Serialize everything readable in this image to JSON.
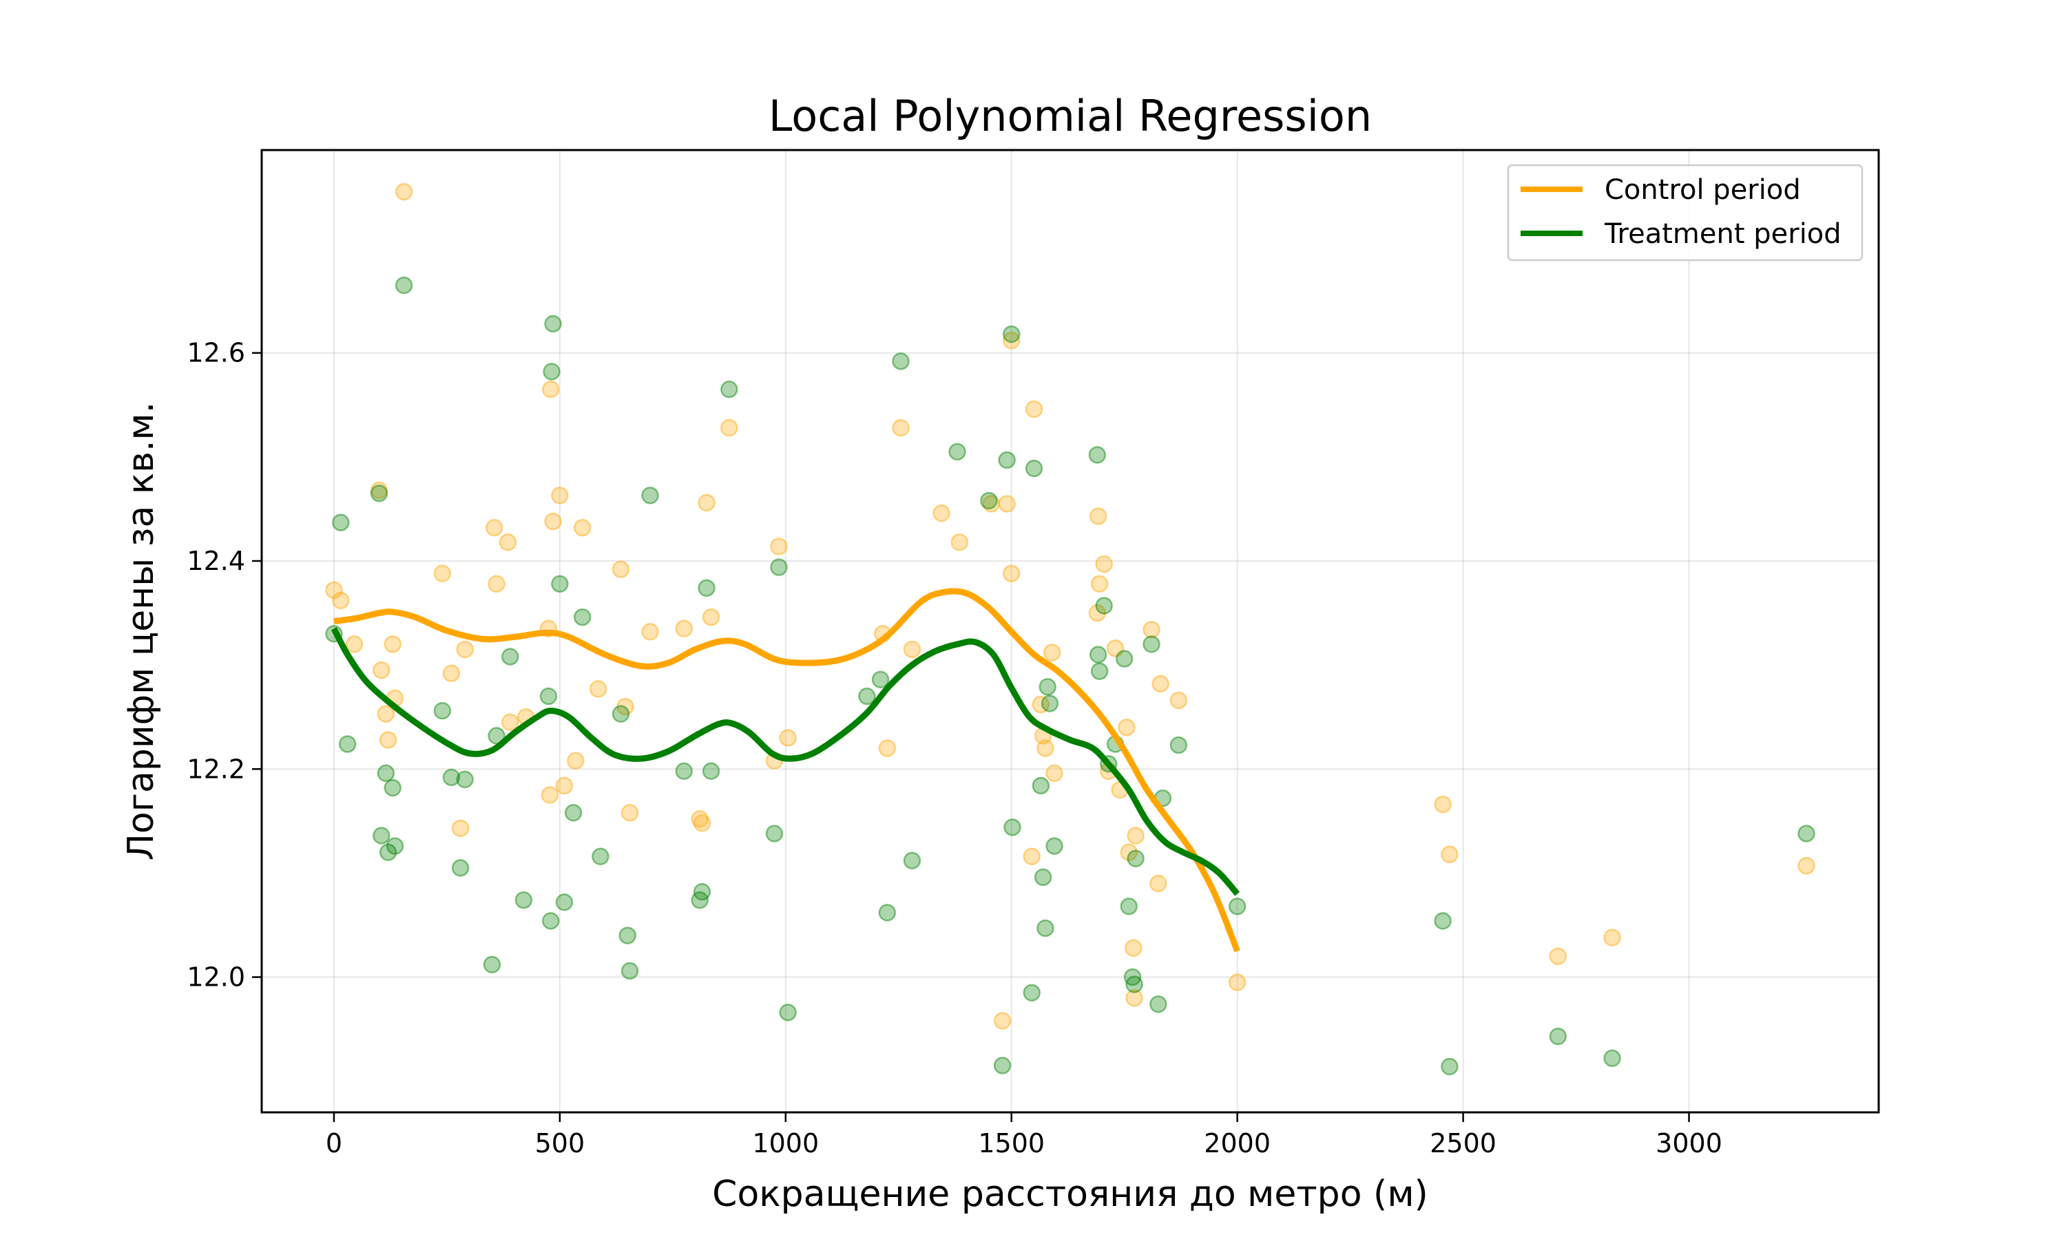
{
  "chart_data": {
    "type": "scatter",
    "title": "Local Polynomial Regression",
    "xlabel": "Сокращение расстояния до метро (м)",
    "ylabel": "Логарифм цены за кв.м.",
    "xlim": [
      -160,
      3420
    ],
    "ylim": [
      11.87,
      12.795
    ],
    "xticks": [
      0,
      500,
      1000,
      1500,
      2000,
      2500,
      3000
    ],
    "yticks": [
      12.0,
      12.2,
      12.4,
      12.6
    ],
    "xtick_labels": [
      "0",
      "500",
      "1000",
      "1500",
      "2000",
      "2500",
      "3000"
    ],
    "ytick_labels": [
      "12.0",
      "12.2",
      "12.4",
      "12.6"
    ],
    "grid": true,
    "legend_position": "top-right",
    "series": [
      {
        "name": "Control period",
        "color": "#FFA500",
        "points": [
          [
            0,
            12.372
          ],
          [
            15,
            12.362
          ],
          [
            45,
            12.32
          ],
          [
            100,
            12.468
          ],
          [
            105,
            12.295
          ],
          [
            115,
            12.253
          ],
          [
            120,
            12.228
          ],
          [
            130,
            12.32
          ],
          [
            135,
            12.268
          ],
          [
            155,
            12.755
          ],
          [
            240,
            12.388
          ],
          [
            260,
            12.292
          ],
          [
            280,
            12.143
          ],
          [
            290,
            12.315
          ],
          [
            355,
            12.432
          ],
          [
            360,
            12.378
          ],
          [
            385,
            12.418
          ],
          [
            390,
            12.245
          ],
          [
            425,
            12.25
          ],
          [
            475,
            12.335
          ],
          [
            478,
            12.175
          ],
          [
            480,
            12.565
          ],
          [
            485,
            12.438
          ],
          [
            500,
            12.463
          ],
          [
            510,
            12.184
          ],
          [
            535,
            12.208
          ],
          [
            550,
            12.432
          ],
          [
            585,
            12.277
          ],
          [
            635,
            12.392
          ],
          [
            645,
            12.26
          ],
          [
            655,
            12.158
          ],
          [
            700,
            12.332
          ],
          [
            775,
            12.335
          ],
          [
            810,
            12.152
          ],
          [
            815,
            12.148
          ],
          [
            825,
            12.456
          ],
          [
            835,
            12.346
          ],
          [
            875,
            12.528
          ],
          [
            975,
            12.208
          ],
          [
            985,
            12.414
          ],
          [
            1005,
            12.23
          ],
          [
            1215,
            12.33
          ],
          [
            1225,
            12.22
          ],
          [
            1255,
            12.528
          ],
          [
            1280,
            12.315
          ],
          [
            1345,
            12.446
          ],
          [
            1385,
            12.418
          ],
          [
            1455,
            12.455
          ],
          [
            1480,
            11.958
          ],
          [
            1490,
            12.455
          ],
          [
            1500,
            12.388
          ],
          [
            1500,
            12.612
          ],
          [
            1545,
            12.116
          ],
          [
            1550,
            12.546
          ],
          [
            1565,
            12.262
          ],
          [
            1570,
            12.232
          ],
          [
            1575,
            12.22
          ],
          [
            1590,
            12.312
          ],
          [
            1595,
            12.196
          ],
          [
            1690,
            12.35
          ],
          [
            1692,
            12.443
          ],
          [
            1695,
            12.378
          ],
          [
            1705,
            12.397
          ],
          [
            1715,
            12.198
          ],
          [
            1730,
            12.316
          ],
          [
            1740,
            12.18
          ],
          [
            1755,
            12.24
          ],
          [
            1760,
            12.12
          ],
          [
            1770,
            12.028
          ],
          [
            1772,
            11.98
          ],
          [
            1775,
            12.136
          ],
          [
            1810,
            12.334
          ],
          [
            1825,
            12.09
          ],
          [
            1830,
            12.282
          ],
          [
            1870,
            12.266
          ],
          [
            2000,
            11.995
          ],
          [
            2455,
            12.166
          ],
          [
            2470,
            12.118
          ],
          [
            2710,
            12.02
          ],
          [
            2830,
            12.038
          ],
          [
            3260,
            12.107
          ]
        ],
        "curve": [
          [
            0,
            12.342
          ],
          [
            50,
            12.345
          ],
          [
            100,
            12.35
          ],
          [
            130,
            12.351
          ],
          [
            180,
            12.346
          ],
          [
            250,
            12.333
          ],
          [
            330,
            12.325
          ],
          [
            400,
            12.327
          ],
          [
            470,
            12.331
          ],
          [
            520,
            12.327
          ],
          [
            600,
            12.31
          ],
          [
            680,
            12.299
          ],
          [
            740,
            12.302
          ],
          [
            800,
            12.315
          ],
          [
            860,
            12.323
          ],
          [
            910,
            12.32
          ],
          [
            980,
            12.305
          ],
          [
            1050,
            12.302
          ],
          [
            1120,
            12.305
          ],
          [
            1180,
            12.315
          ],
          [
            1230,
            12.33
          ],
          [
            1300,
            12.361
          ],
          [
            1350,
            12.37
          ],
          [
            1400,
            12.369
          ],
          [
            1450,
            12.355
          ],
          [
            1500,
            12.332
          ],
          [
            1550,
            12.31
          ],
          [
            1600,
            12.295
          ],
          [
            1650,
            12.275
          ],
          [
            1700,
            12.25
          ],
          [
            1750,
            12.218
          ],
          [
            1800,
            12.18
          ],
          [
            1850,
            12.15
          ],
          [
            1900,
            12.12
          ],
          [
            1950,
            12.08
          ],
          [
            2000,
            12.025
          ]
        ]
      },
      {
        "name": "Treatment period",
        "color": "#008000",
        "points": [
          [
            0,
            12.33
          ],
          [
            15,
            12.437
          ],
          [
            30,
            12.224
          ],
          [
            100,
            12.465
          ],
          [
            105,
            12.136
          ],
          [
            115,
            12.196
          ],
          [
            120,
            12.12
          ],
          [
            130,
            12.182
          ],
          [
            135,
            12.126
          ],
          [
            155,
            12.665
          ],
          [
            240,
            12.256
          ],
          [
            260,
            12.192
          ],
          [
            280,
            12.105
          ],
          [
            290,
            12.19
          ],
          [
            350,
            12.012
          ],
          [
            360,
            12.232
          ],
          [
            390,
            12.308
          ],
          [
            420,
            12.074
          ],
          [
            475,
            12.27
          ],
          [
            480,
            12.054
          ],
          [
            482,
            12.582
          ],
          [
            485,
            12.628
          ],
          [
            500,
            12.378
          ],
          [
            510,
            12.072
          ],
          [
            530,
            12.158
          ],
          [
            550,
            12.346
          ],
          [
            590,
            12.116
          ],
          [
            635,
            12.253
          ],
          [
            650,
            12.04
          ],
          [
            655,
            12.006
          ],
          [
            700,
            12.463
          ],
          [
            775,
            12.198
          ],
          [
            810,
            12.074
          ],
          [
            815,
            12.082
          ],
          [
            825,
            12.374
          ],
          [
            835,
            12.198
          ],
          [
            875,
            12.565
          ],
          [
            975,
            12.138
          ],
          [
            985,
            12.394
          ],
          [
            1005,
            11.966
          ],
          [
            1180,
            12.27
          ],
          [
            1210,
            12.286
          ],
          [
            1225,
            12.062
          ],
          [
            1255,
            12.592
          ],
          [
            1280,
            12.112
          ],
          [
            1380,
            12.505
          ],
          [
            1450,
            12.458
          ],
          [
            1480,
            11.915
          ],
          [
            1490,
            12.497
          ],
          [
            1500,
            12.618
          ],
          [
            1502,
            12.144
          ],
          [
            1545,
            11.985
          ],
          [
            1550,
            12.489
          ],
          [
            1565,
            12.184
          ],
          [
            1570,
            12.096
          ],
          [
            1575,
            12.047
          ],
          [
            1580,
            12.279
          ],
          [
            1585,
            12.263
          ],
          [
            1595,
            12.126
          ],
          [
            1690,
            12.502
          ],
          [
            1692,
            12.31
          ],
          [
            1695,
            12.294
          ],
          [
            1705,
            12.357
          ],
          [
            1715,
            12.205
          ],
          [
            1730,
            12.224
          ],
          [
            1750,
            12.306
          ],
          [
            1760,
            12.068
          ],
          [
            1768,
            12.0
          ],
          [
            1772,
            11.993
          ],
          [
            1775,
            12.114
          ],
          [
            1810,
            12.32
          ],
          [
            1825,
            11.974
          ],
          [
            1835,
            12.172
          ],
          [
            1870,
            12.223
          ],
          [
            2000,
            12.068
          ],
          [
            2455,
            12.054
          ],
          [
            2470,
            11.914
          ],
          [
            2710,
            11.943
          ],
          [
            2830,
            11.922
          ],
          [
            3260,
            12.138
          ]
        ],
        "curve": [
          [
            0,
            12.335
          ],
          [
            30,
            12.31
          ],
          [
            70,
            12.285
          ],
          [
            120,
            12.265
          ],
          [
            180,
            12.245
          ],
          [
            250,
            12.225
          ],
          [
            300,
            12.215
          ],
          [
            350,
            12.218
          ],
          [
            400,
            12.235
          ],
          [
            450,
            12.25
          ],
          [
            480,
            12.256
          ],
          [
            520,
            12.25
          ],
          [
            570,
            12.23
          ],
          [
            620,
            12.214
          ],
          [
            680,
            12.21
          ],
          [
            740,
            12.217
          ],
          [
            800,
            12.232
          ],
          [
            850,
            12.243
          ],
          [
            880,
            12.244
          ],
          [
            920,
            12.235
          ],
          [
            970,
            12.215
          ],
          [
            1010,
            12.21
          ],
          [
            1060,
            12.215
          ],
          [
            1120,
            12.232
          ],
          [
            1180,
            12.254
          ],
          [
            1230,
            12.28
          ],
          [
            1280,
            12.3
          ],
          [
            1330,
            12.313
          ],
          [
            1380,
            12.32
          ],
          [
            1420,
            12.322
          ],
          [
            1460,
            12.31
          ],
          [
            1500,
            12.278
          ],
          [
            1540,
            12.25
          ],
          [
            1580,
            12.238
          ],
          [
            1630,
            12.228
          ],
          [
            1680,
            12.22
          ],
          [
            1720,
            12.202
          ],
          [
            1760,
            12.18
          ],
          [
            1800,
            12.15
          ],
          [
            1840,
            12.13
          ],
          [
            1880,
            12.12
          ],
          [
            1920,
            12.112
          ],
          [
            1960,
            12.1
          ],
          [
            2000,
            12.08
          ]
        ]
      }
    ]
  }
}
